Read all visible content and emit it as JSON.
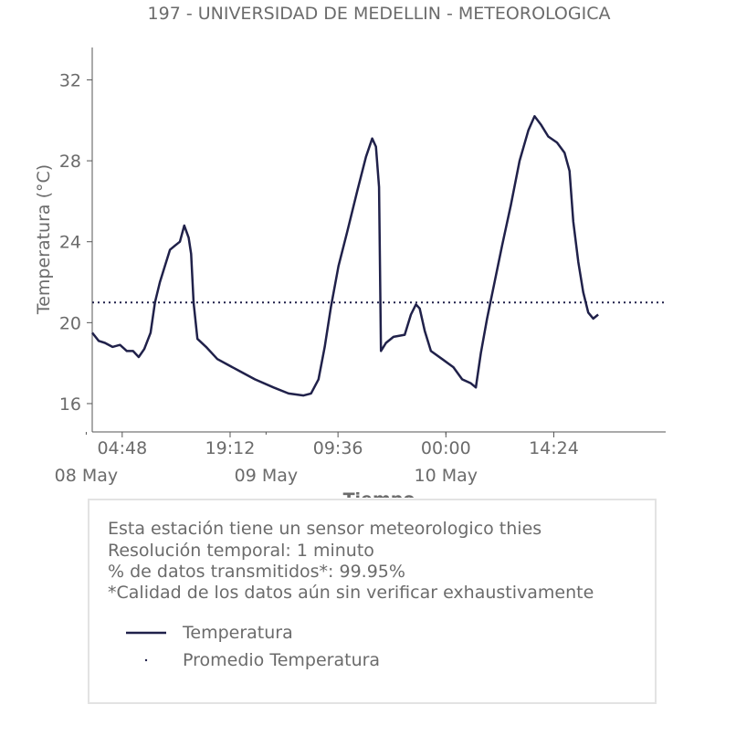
{
  "chart_data": {
    "type": "line",
    "title": "197 - UNIVERSIDAD DE MEDELLIN - METEOROLOGICA",
    "xlabel": "Tiempo",
    "ylabel": "Temperatura (°C)",
    "xlim": [
      "2020-05-08T00:48",
      "2020-05-11T05:20"
    ],
    "ylim": [
      14.6,
      33.6
    ],
    "y_ticks": [
      16,
      20,
      24,
      28,
      32
    ],
    "x_ticks": [
      {
        "time": "2020-05-08T04:48",
        "label": "04:48"
      },
      {
        "time": "2020-05-08T19:12",
        "label": "19:12"
      },
      {
        "time": "2020-05-09T09:36",
        "label": "09:36"
      },
      {
        "time": "2020-05-10T00:00",
        "label": "00:00"
      },
      {
        "time": "2020-05-10T14:24",
        "label": "14:24"
      }
    ],
    "date_labels": [
      {
        "time": "2020-05-08T00:00",
        "label": "08 May"
      },
      {
        "time": "2020-05-09T00:00",
        "label": "09 May"
      },
      {
        "time": "2020-05-10T00:00",
        "label": "10 May"
      }
    ],
    "grid": false,
    "series": [
      {
        "name": "Temperatura",
        "style": "solid",
        "color": "#20214a",
        "points": [
          [
            "2020-05-08T00:48",
            19.5
          ],
          [
            "2020-05-08T01:40",
            19.1
          ],
          [
            "2020-05-08T02:30",
            19.0
          ],
          [
            "2020-05-08T03:30",
            18.8
          ],
          [
            "2020-05-08T04:30",
            18.9
          ],
          [
            "2020-05-08T05:25",
            18.6
          ],
          [
            "2020-05-08T06:15",
            18.6
          ],
          [
            "2020-05-08T07:00",
            18.3
          ],
          [
            "2020-05-08T07:45",
            18.7
          ],
          [
            "2020-05-08T08:35",
            19.5
          ],
          [
            "2020-05-08T09:10",
            21.0
          ],
          [
            "2020-05-08T09:50",
            22.0
          ],
          [
            "2020-05-08T10:30",
            22.8
          ],
          [
            "2020-05-08T11:10",
            23.6
          ],
          [
            "2020-05-08T11:50",
            23.8
          ],
          [
            "2020-05-08T12:30",
            24.0
          ],
          [
            "2020-05-08T13:05",
            24.8
          ],
          [
            "2020-05-08T13:40",
            24.2
          ],
          [
            "2020-05-08T14:00",
            23.4
          ],
          [
            "2020-05-08T14:20",
            21.0
          ],
          [
            "2020-05-08T14:50",
            19.2
          ],
          [
            "2020-05-08T16:00",
            18.8
          ],
          [
            "2020-05-08T17:30",
            18.2
          ],
          [
            "2020-05-08T19:00",
            17.9
          ],
          [
            "2020-05-08T20:30",
            17.6
          ],
          [
            "2020-05-08T22:30",
            17.2
          ],
          [
            "2020-05-09T01:00",
            16.8
          ],
          [
            "2020-05-09T03:00",
            16.5
          ],
          [
            "2020-05-09T05:00",
            16.4
          ],
          [
            "2020-05-09T06:00",
            16.5
          ],
          [
            "2020-05-09T07:00",
            17.2
          ],
          [
            "2020-05-09T07:50",
            18.8
          ],
          [
            "2020-05-09T08:40",
            20.8
          ],
          [
            "2020-05-09T09:40",
            22.8
          ],
          [
            "2020-05-09T10:50",
            24.5
          ],
          [
            "2020-05-09T12:10",
            26.5
          ],
          [
            "2020-05-09T13:20",
            28.2
          ],
          [
            "2020-05-09T14:10",
            29.1
          ],
          [
            "2020-05-09T14:40",
            28.7
          ],
          [
            "2020-05-09T15:05",
            26.7
          ],
          [
            "2020-05-09T15:20",
            18.6
          ],
          [
            "2020-05-09T16:00",
            19.0
          ],
          [
            "2020-05-09T17:00",
            19.3
          ],
          [
            "2020-05-09T18:30",
            19.4
          ],
          [
            "2020-05-09T19:20",
            20.4
          ],
          [
            "2020-05-09T20:00",
            20.9
          ],
          [
            "2020-05-09T20:30",
            20.7
          ],
          [
            "2020-05-09T21:10",
            19.6
          ],
          [
            "2020-05-09T22:00",
            18.6
          ],
          [
            "2020-05-09T23:30",
            18.2
          ],
          [
            "2020-05-10T01:00",
            17.8
          ],
          [
            "2020-05-10T02:10",
            17.2
          ],
          [
            "2020-05-10T03:20",
            17.0
          ],
          [
            "2020-05-10T04:00",
            16.8
          ],
          [
            "2020-05-10T04:40",
            18.5
          ],
          [
            "2020-05-10T05:30",
            20.2
          ],
          [
            "2020-05-10T06:30",
            22.0
          ],
          [
            "2020-05-10T07:30",
            23.8
          ],
          [
            "2020-05-10T08:40",
            25.8
          ],
          [
            "2020-05-10T09:50",
            28.0
          ],
          [
            "2020-05-10T11:00",
            29.5
          ],
          [
            "2020-05-10T11:50",
            30.2
          ],
          [
            "2020-05-10T12:40",
            29.8
          ],
          [
            "2020-05-10T13:40",
            29.2
          ],
          [
            "2020-05-10T14:50",
            28.9
          ],
          [
            "2020-05-10T15:50",
            28.4
          ],
          [
            "2020-05-10T16:30",
            27.5
          ],
          [
            "2020-05-10T17:00",
            25.0
          ],
          [
            "2020-05-10T17:40",
            23.0
          ],
          [
            "2020-05-10T18:20",
            21.5
          ],
          [
            "2020-05-10T19:00",
            20.5
          ],
          [
            "2020-05-10T19:40",
            20.2
          ],
          [
            "2020-05-10T20:20",
            20.4
          ]
        ]
      },
      {
        "name": "Promedio Temperatura",
        "style": "dotted",
        "color": "#20214a",
        "constant": 21.0
      }
    ]
  },
  "info": {
    "line1": "Esta estación tiene un sensor meteorologico thies",
    "line2": "Resolución temporal: 1 minuto",
    "line3": "% de datos transmitidos*: 99.95%",
    "line4": "*Calidad de los datos aún sin verificar exhaustivamente"
  },
  "legend": {
    "item1": "Temperatura",
    "item2": "Promedio Temperatura"
  },
  "colors": {
    "line": "#20214a",
    "text": "#6b6b6b",
    "axis": "#555555",
    "box_border": "#e3e3e3"
  }
}
